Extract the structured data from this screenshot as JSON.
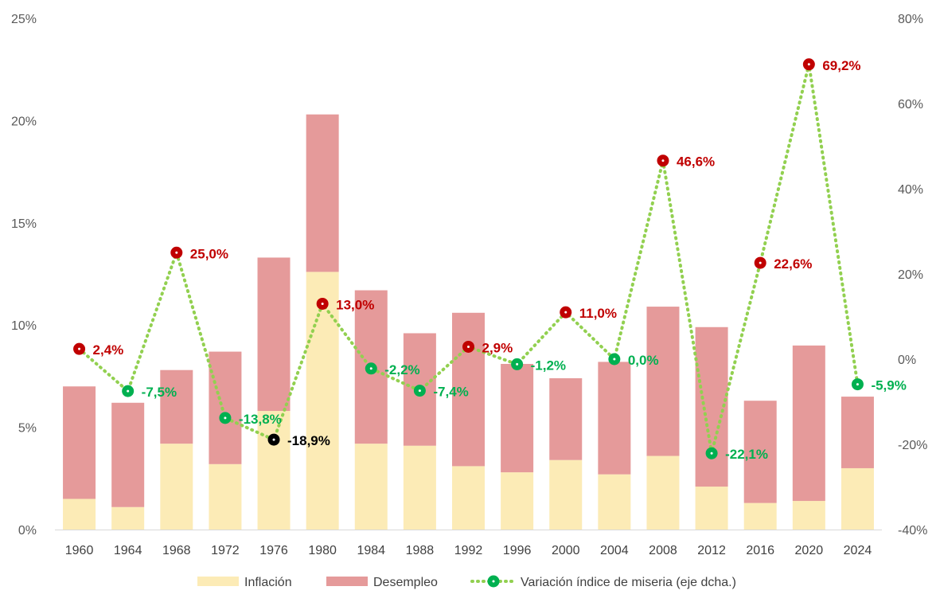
{
  "chart_data": {
    "type": "bar",
    "stacked": true,
    "categories": [
      "1960",
      "1964",
      "1968",
      "1972",
      "1976",
      "1980",
      "1984",
      "1988",
      "1992",
      "1996",
      "2000",
      "2004",
      "2008",
      "2012",
      "2016",
      "2020",
      "2024"
    ],
    "series": [
      {
        "name": "Inflación",
        "type": "bar",
        "axis": "left",
        "color": "#FCEBB6",
        "values": [
          1.5,
          1.1,
          4.2,
          3.2,
          5.8,
          12.6,
          4.2,
          4.1,
          3.1,
          2.8,
          3.4,
          2.7,
          3.6,
          2.1,
          1.3,
          1.4,
          3.0
        ]
      },
      {
        "name": "Desempleo",
        "type": "bar",
        "axis": "left",
        "color": "#E59A9A",
        "values": [
          5.5,
          5.1,
          3.6,
          5.5,
          7.5,
          7.7,
          7.5,
          5.5,
          7.5,
          5.3,
          4.0,
          5.5,
          7.3,
          7.8,
          5.0,
          7.6,
          3.5
        ]
      },
      {
        "name": "Variación índice de miseria (eje dcha.)",
        "type": "line",
        "axis": "right",
        "color": "#92D050",
        "values": [
          2.4,
          -7.5,
          25.0,
          -13.8,
          -18.9,
          13.0,
          -2.2,
          -7.4,
          2.9,
          -1.2,
          11.0,
          0.0,
          46.6,
          -22.1,
          22.6,
          69.2,
          -5.9
        ],
        "labels": [
          "2,4%",
          "-7,5%",
          "25,0%",
          "-13,8%",
          "-18,9%",
          "13,0%",
          "-2,2%",
          "-7,4%",
          "2,9%",
          "-1,2%",
          "11,0%",
          "0,0%",
          "46,6%",
          "-22,1%",
          "22,6%",
          "69,2%",
          "-5,9%"
        ]
      }
    ],
    "y_left": {
      "min": 0,
      "max": 25,
      "step": 5,
      "ticks": [
        "0%",
        "5%",
        "10%",
        "15%",
        "20%",
        "25%"
      ]
    },
    "y_right": {
      "min": -40,
      "max": 80,
      "step": 20,
      "ticks": [
        "-40%",
        "-20%",
        "0%",
        "20%",
        "40%",
        "60%",
        "80%"
      ]
    },
    "legend_position": "bottom",
    "colors": {
      "positive": "#C00000",
      "negative": "#00B050",
      "minimum": "#000000",
      "axis": "#D9D9D9"
    }
  }
}
